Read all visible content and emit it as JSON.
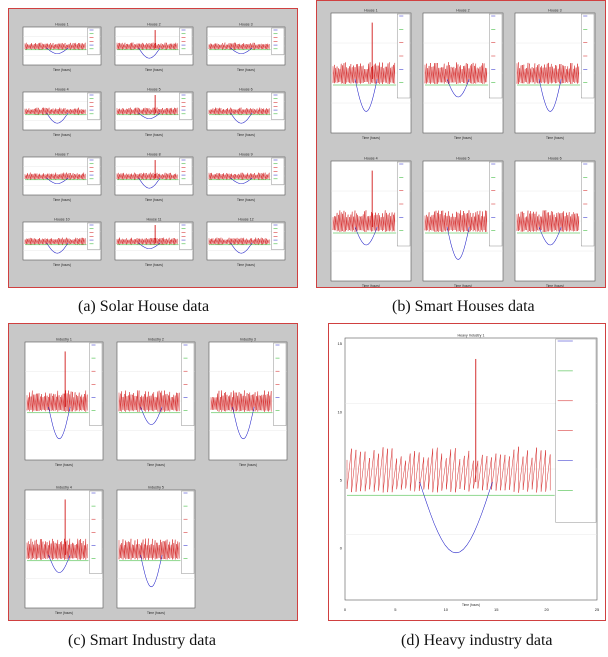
{
  "figure": {
    "captions": {
      "a": "(a) Solar House data",
      "b": "(b) Smart Houses data",
      "c": "(c) Smart Industry data",
      "d": "(d) Heavy industry data"
    },
    "solar_house": {
      "titles": [
        "House 1",
        "House 2",
        "House 3",
        "House 4",
        "House 5",
        "House 6",
        "House 7",
        "House 8",
        "House 9",
        "House 10",
        "House 11",
        "House 12"
      ],
      "xlabel": "Time (hours)"
    },
    "smart_houses": {
      "titles": [
        "House 1",
        "House 2",
        "House 3",
        "House 4",
        "House 5",
        "House 6"
      ],
      "xlabel": "Time (hours)"
    },
    "smart_industry": {
      "titles": [
        "Industry 1",
        "Industry 2",
        "Industry 3",
        "Industry 4",
        "Industry 5"
      ],
      "xlabel": "Time (hours)"
    },
    "heavy_industry": {
      "title": "Heavy Industry 1",
      "xlabel": "Time (hours)",
      "x_ticks": [
        "0",
        "5",
        "10",
        "15",
        "20",
        "25"
      ],
      "y_ticks": [
        "15",
        "10",
        "5",
        "0"
      ]
    }
  },
  "colors": {
    "panel_border": "#d04040",
    "panel_gray": "#c8c8c8",
    "load": "#d01818",
    "battery": "#2020c8",
    "grid": "#22b022",
    "pv": "#20c0c0"
  }
}
